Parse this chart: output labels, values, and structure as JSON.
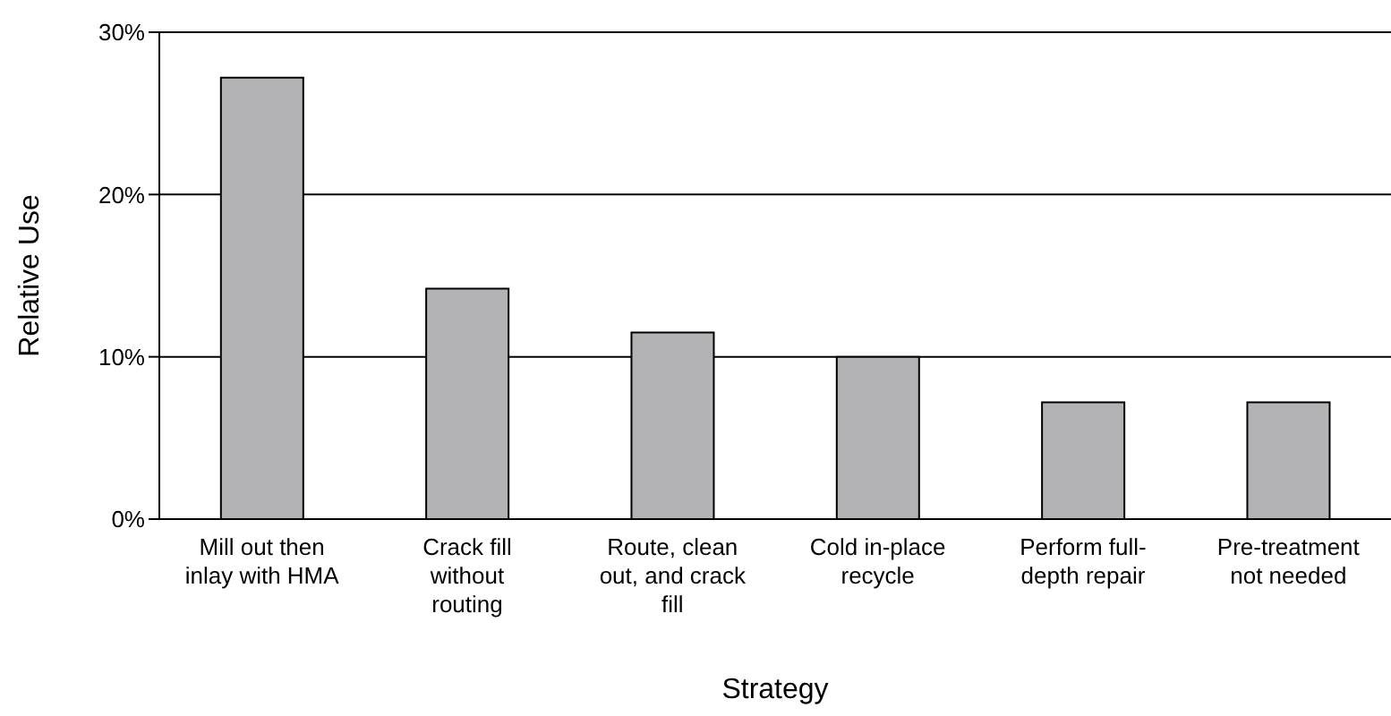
{
  "chart_data": {
    "type": "bar",
    "xlabel": "Strategy",
    "ylabel": "Relative Use",
    "categories": [
      "Mill out then inlay with HMA",
      "Crack fill without routing",
      "Route, clean out, and crack fill",
      "Cold in-place recycle",
      "Perform full-depth repair",
      "Pre-treatment not needed"
    ],
    "values": [
      27.2,
      14.2,
      11.5,
      10.0,
      7.2,
      7.2
    ],
    "color": "#b3b3b5",
    "ylim": [
      0,
      30
    ],
    "yticks": [
      {
        "value": 0,
        "label": "0%"
      },
      {
        "value": 10,
        "label": "10%"
      },
      {
        "value": 20,
        "label": "20%"
      },
      {
        "value": 30,
        "label": "30%"
      }
    ],
    "grid": "y"
  }
}
